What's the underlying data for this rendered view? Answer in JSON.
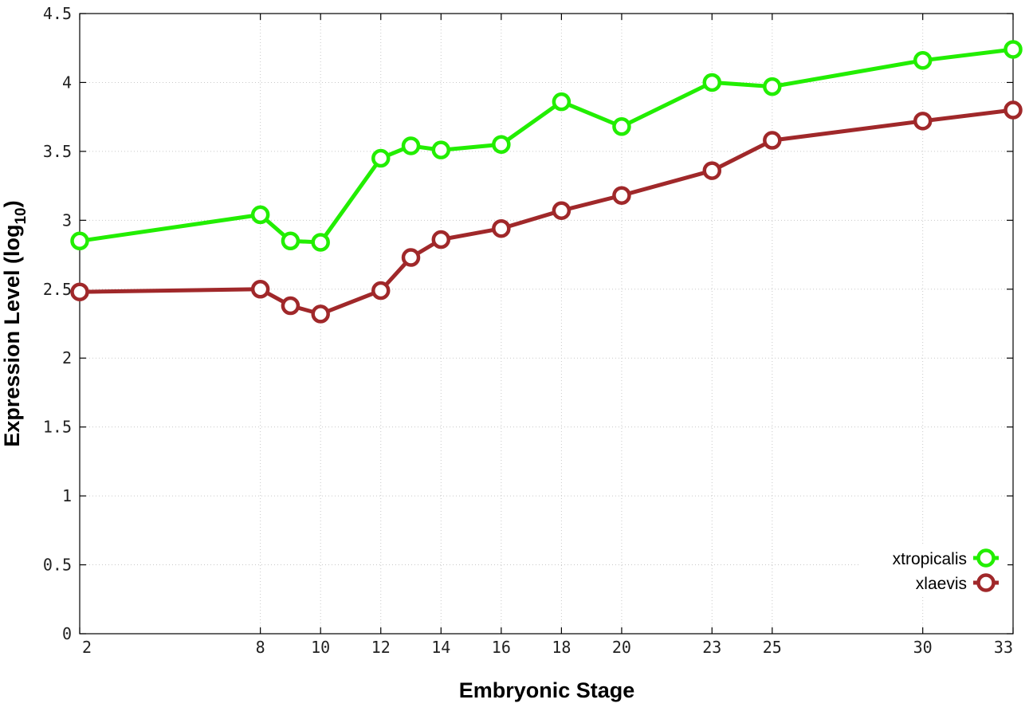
{
  "chart_data": {
    "type": "line",
    "xlabel": "Embryonic Stage",
    "ylabel": "Expression Level (log",
    "ylabel_sub": "10",
    "ylabel_close": ")",
    "x_ticks": [
      2,
      8,
      10,
      12,
      14,
      16,
      18,
      20,
      23,
      25,
      30,
      33
    ],
    "y_ticks": [
      "0",
      "0.5",
      "1",
      "1.5",
      "2",
      "2.5",
      "3",
      "3.5",
      "4",
      "4.5"
    ],
    "ylim": [
      0,
      4.5
    ],
    "grid": true,
    "legend_position": "bottom-right",
    "series": [
      {
        "name": "xtropicalis",
        "color": "#22ee00",
        "points": [
          {
            "stage": 2,
            "value": 2.85
          },
          {
            "stage": 8,
            "value": 3.04
          },
          {
            "stage": 9,
            "value": 2.85
          },
          {
            "stage": 10,
            "value": 2.84
          },
          {
            "stage": 12,
            "value": 3.45
          },
          {
            "stage": 13,
            "value": 3.54
          },
          {
            "stage": 14,
            "value": 3.51
          },
          {
            "stage": 16,
            "value": 3.55
          },
          {
            "stage": 18,
            "value": 3.86
          },
          {
            "stage": 20,
            "value": 3.68
          },
          {
            "stage": 23,
            "value": 4.0
          },
          {
            "stage": 25,
            "value": 3.97
          },
          {
            "stage": 30,
            "value": 4.16
          },
          {
            "stage": 33,
            "value": 4.24
          }
        ]
      },
      {
        "name": "xlaevis",
        "color": "#a0282a",
        "points": [
          {
            "stage": 2,
            "value": 2.48
          },
          {
            "stage": 8,
            "value": 2.5
          },
          {
            "stage": 9,
            "value": 2.38
          },
          {
            "stage": 10,
            "value": 2.32
          },
          {
            "stage": 12,
            "value": 2.49
          },
          {
            "stage": 13,
            "value": 2.73
          },
          {
            "stage": 14,
            "value": 2.86
          },
          {
            "stage": 16,
            "value": 2.94
          },
          {
            "stage": 18,
            "value": 3.07
          },
          {
            "stage": 20,
            "value": 3.18
          },
          {
            "stage": 23,
            "value": 3.36
          },
          {
            "stage": 25,
            "value": 3.58
          },
          {
            "stage": 30,
            "value": 3.72
          },
          {
            "stage": 33,
            "value": 3.8
          }
        ]
      }
    ]
  }
}
